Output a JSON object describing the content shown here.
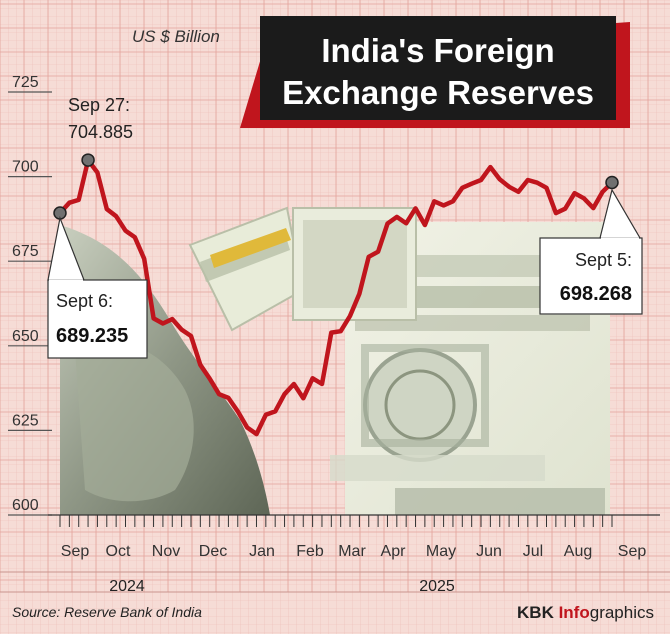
{
  "header": {
    "title_line1": "India's Foreign",
    "title_line2": "Exchange Reserves",
    "unit": "US $ Billion"
  },
  "chart_data": {
    "type": "line",
    "title": "India's Foreign Exchange Reserves",
    "ylabel": "US $ Billion",
    "ylim": [
      600,
      725
    ],
    "yticks": [
      600,
      625,
      650,
      675,
      700,
      725
    ],
    "grid": true,
    "months": [
      {
        "label": "Sep",
        "year": "2024"
      },
      {
        "label": "Oct",
        "year": "2024"
      },
      {
        "label": "Nov",
        "year": "2024"
      },
      {
        "label": "Dec",
        "year": "2024"
      },
      {
        "label": "Jan",
        "year": "2025"
      },
      {
        "label": "Feb",
        "year": "2025"
      },
      {
        "label": "Mar",
        "year": "2025"
      },
      {
        "label": "Apr",
        "year": "2025"
      },
      {
        "label": "May",
        "year": "2025"
      },
      {
        "label": "Jun",
        "year": "2025"
      },
      {
        "label": "Jul",
        "year": "2025"
      },
      {
        "label": "Aug",
        "year": "2025"
      },
      {
        "label": "Sep",
        "year": "2025"
      }
    ],
    "years": [
      "2024",
      "2025"
    ],
    "series": [
      {
        "values": [
          689.235,
          692.3,
          693.1,
          704.885,
          701.2,
          690.4,
          688.3,
          684.0,
          682.1,
          675.7,
          658.1,
          656.6,
          657.9,
          654.8,
          652.9,
          644.4,
          640.3,
          635.7,
          634.6,
          630.6,
          625.9,
          623.9,
          629.6,
          630.6,
          635.7,
          638.7,
          634.5,
          640.4,
          638.7,
          653.9,
          654.3,
          658.8,
          665.4,
          676.3,
          677.8,
          686.1,
          688.1,
          686.2,
          690.6,
          685.7,
          692.7,
          691.5,
          692.7,
          696.7,
          697.9,
          699.0,
          702.8,
          699.2,
          697.0,
          695.5,
          699.0,
          698.2,
          696.7,
          689.2,
          690.5,
          695.1,
          693.6,
          690.7,
          695.5,
          698.268
        ]
      }
    ],
    "annotations": [
      {
        "label": "Sept 6:",
        "value": "689.235"
      },
      {
        "label": "Sep 27:",
        "value": "704.885"
      },
      {
        "label": "Sept 5:",
        "value": "698.268"
      }
    ]
  },
  "footer": {
    "source": "Source: Reserve Bank of India",
    "brand_kbk": "KBK ",
    "brand_info": "Info",
    "brand_graphics": "graphics"
  },
  "colors": {
    "background": "#f6dcd6",
    "grid": "#e5a9a2",
    "line": "#c0151d",
    "title_box": "#1b1b1b",
    "title_shadow": "#c0151d"
  }
}
